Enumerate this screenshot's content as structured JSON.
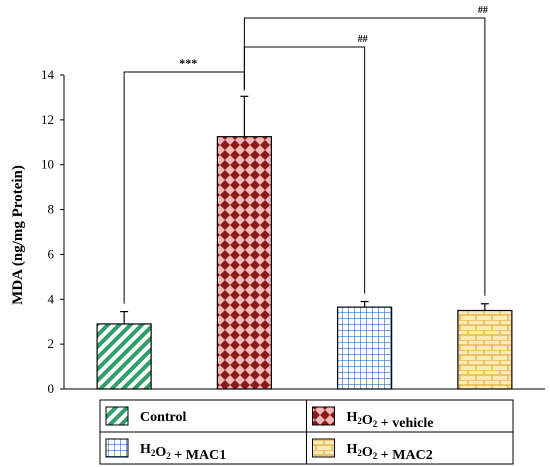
{
  "chart_data": {
    "type": "bar",
    "title": "",
    "xlabel": "",
    "ylabel": "MDA (ng/mg Protein)",
    "ylim": [
      0,
      14
    ],
    "yticks": [
      0,
      2,
      4,
      6,
      8,
      10,
      12,
      14
    ],
    "categories": [
      "Control",
      "H2O2 + vehicle",
      "H2O2 + MAC1",
      "H2O2 + MAC2"
    ],
    "values": [
      2.9,
      11.25,
      3.65,
      3.5
    ],
    "errors": [
      0.55,
      1.8,
      0.25,
      0.3
    ],
    "series": [
      {
        "name": "Control",
        "legend_main": "Control",
        "legend_sub": "",
        "legend_tail": "",
        "pattern": "diagonal-stripes",
        "color": "#2e9e6a"
      },
      {
        "name": "H2O2 + vehicle",
        "legend_main": "H",
        "legend_sub": "2",
        "legend_mid": "O",
        "legend_sub2": "2",
        "legend_tail": " + vehicle",
        "pattern": "checker-diamond",
        "color": "#8b1a1a"
      },
      {
        "name": "H2O2 + MAC1",
        "legend_main": "H",
        "legend_sub": "2",
        "legend_mid": "O",
        "legend_sub2": "2",
        "legend_tail": " + MAC1",
        "pattern": "grid",
        "color": "#2a72c9"
      },
      {
        "name": "H2O2 + MAC2",
        "legend_main": "H",
        "legend_sub": "2",
        "legend_mid": "O",
        "legend_sub2": "2",
        "legend_tail": " + MAC2",
        "pattern": "brick",
        "color": "#e0b33c"
      }
    ],
    "significance": [
      {
        "label": "***",
        "from": 0,
        "to": 1
      },
      {
        "label": "##",
        "from": 1,
        "to": 2
      },
      {
        "label": "##",
        "from": 1,
        "to": 3
      }
    ],
    "legend_position": "bottom"
  }
}
